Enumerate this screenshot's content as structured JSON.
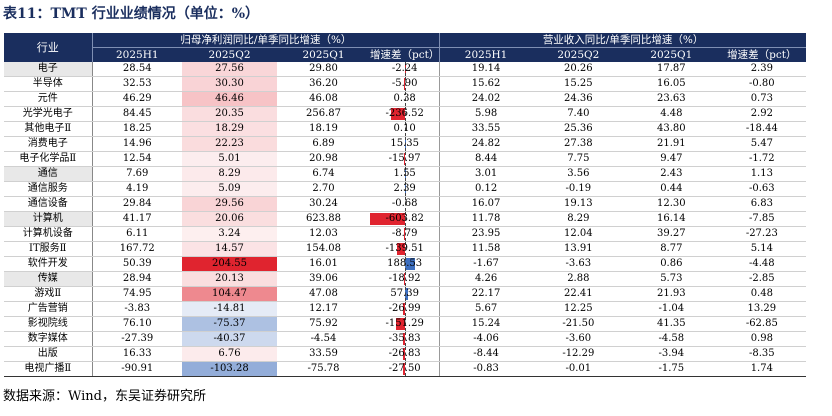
{
  "title": "表11：TMT 行业业绩情况（单位：%）",
  "source": "数据来源：Wind，东吴证券研究所",
  "headers": {
    "industry": "行业",
    "group_profit": "归母净利润同比/单季同比增速（%）",
    "group_revenue": "营业收入同比/单季同比增速（%）",
    "cols": [
      "2025H1",
      "2025Q2",
      "2025Q1",
      "增速差（pct）",
      "2025H1",
      "2025Q2",
      "2025Q1",
      "增速差（pct）"
    ]
  },
  "colors": {
    "header_bg": "#1a2e5e",
    "positive": "#e0242f",
    "negative": "#3566b8",
    "main_row_bg": "#e8e8e8"
  },
  "rows": [
    {
      "name": "电子",
      "level": "main",
      "p_h1": "28.54",
      "p_q2": "27.56",
      "p_q1": "29.80",
      "p_diff": "-2.24",
      "r_h1": "19.14",
      "r_q2": "20.26",
      "r_q1": "17.87",
      "r_diff": "2.39"
    },
    {
      "name": "半导体",
      "level": "sub",
      "p_h1": "32.53",
      "p_q2": "30.30",
      "p_q1": "36.20",
      "p_diff": "-5.90",
      "r_h1": "15.62",
      "r_q2": "15.25",
      "r_q1": "16.05",
      "r_diff": "-0.80"
    },
    {
      "name": "元件",
      "level": "sub",
      "p_h1": "46.29",
      "p_q2": "46.46",
      "p_q1": "46.08",
      "p_diff": "0.38",
      "r_h1": "24.02",
      "r_q2": "24.36",
      "r_q1": "23.63",
      "r_diff": "0.73"
    },
    {
      "name": "光学光电子",
      "level": "sub",
      "p_h1": "84.45",
      "p_q2": "20.35",
      "p_q1": "256.87",
      "p_diff": "-236.52",
      "r_h1": "5.98",
      "r_q2": "7.40",
      "r_q1": "4.48",
      "r_diff": "2.92"
    },
    {
      "name": "其他电子Ⅱ",
      "level": "sub",
      "p_h1": "18.25",
      "p_q2": "18.29",
      "p_q1": "18.19",
      "p_diff": "0.10",
      "r_h1": "33.55",
      "r_q2": "25.36",
      "r_q1": "43.80",
      "r_diff": "-18.44"
    },
    {
      "name": "消费电子",
      "level": "sub",
      "p_h1": "14.96",
      "p_q2": "22.23",
      "p_q1": "6.89",
      "p_diff": "15.35",
      "r_h1": "24.82",
      "r_q2": "27.38",
      "r_q1": "21.91",
      "r_diff": "5.47"
    },
    {
      "name": "电子化学品Ⅱ",
      "level": "sub",
      "p_h1": "12.54",
      "p_q2": "5.01",
      "p_q1": "20.98",
      "p_diff": "-15.97",
      "r_h1": "8.44",
      "r_q2": "7.75",
      "r_q1": "9.47",
      "r_diff": "-1.72"
    },
    {
      "name": "通信",
      "level": "main",
      "p_h1": "7.69",
      "p_q2": "8.29",
      "p_q1": "6.74",
      "p_diff": "1.55",
      "r_h1": "3.01",
      "r_q2": "3.56",
      "r_q1": "2.43",
      "r_diff": "1.13"
    },
    {
      "name": "通信服务",
      "level": "sub",
      "p_h1": "4.19",
      "p_q2": "5.09",
      "p_q1": "2.70",
      "p_diff": "2.39",
      "r_h1": "0.12",
      "r_q2": "-0.19",
      "r_q1": "0.44",
      "r_diff": "-0.63"
    },
    {
      "name": "通信设备",
      "level": "sub",
      "p_h1": "29.84",
      "p_q2": "29.56",
      "p_q1": "30.24",
      "p_diff": "-0.68",
      "r_h1": "16.07",
      "r_q2": "19.13",
      "r_q1": "12.30",
      "r_diff": "6.83"
    },
    {
      "name": "计算机",
      "level": "main",
      "p_h1": "41.17",
      "p_q2": "20.06",
      "p_q1": "623.88",
      "p_diff": "-603.82",
      "r_h1": "11.78",
      "r_q2": "8.29",
      "r_q1": "16.14",
      "r_diff": "-7.85"
    },
    {
      "name": "计算机设备",
      "level": "sub",
      "p_h1": "6.11",
      "p_q2": "3.24",
      "p_q1": "12.03",
      "p_diff": "-8.79",
      "r_h1": "23.95",
      "r_q2": "12.04",
      "r_q1": "39.27",
      "r_diff": "-27.23"
    },
    {
      "name": "IT服务Ⅱ",
      "level": "sub",
      "p_h1": "167.72",
      "p_q2": "14.57",
      "p_q1": "154.08",
      "p_diff": "-139.51",
      "r_h1": "11.58",
      "r_q2": "13.91",
      "r_q1": "8.77",
      "r_diff": "5.14"
    },
    {
      "name": "软件开发",
      "level": "sub",
      "p_h1": "50.39",
      "p_q2": "204.55",
      "p_q1": "16.01",
      "p_diff": "188.53",
      "r_h1": "-1.67",
      "r_q2": "-3.63",
      "r_q1": "0.86",
      "r_diff": "-4.48"
    },
    {
      "name": "传媒",
      "level": "main",
      "p_h1": "28.94",
      "p_q2": "20.13",
      "p_q1": "39.06",
      "p_diff": "-18.92",
      "r_h1": "4.26",
      "r_q2": "2.88",
      "r_q1": "5.73",
      "r_diff": "-2.85"
    },
    {
      "name": "游戏Ⅱ",
      "level": "sub",
      "p_h1": "74.95",
      "p_q2": "104.47",
      "p_q1": "47.08",
      "p_diff": "57.39",
      "r_h1": "22.17",
      "r_q2": "22.41",
      "r_q1": "21.93",
      "r_diff": "0.48"
    },
    {
      "name": "广告营销",
      "level": "sub",
      "p_h1": "-3.83",
      "p_q2": "-14.81",
      "p_q1": "12.17",
      "p_diff": "-26.99",
      "r_h1": "5.67",
      "r_q2": "12.25",
      "r_q1": "-1.04",
      "r_diff": "13.29"
    },
    {
      "name": "影视院线",
      "level": "sub",
      "p_h1": "76.10",
      "p_q2": "-75.37",
      "p_q1": "75.92",
      "p_diff": "-151.29",
      "r_h1": "15.24",
      "r_q2": "-21.50",
      "r_q1": "41.35",
      "r_diff": "-62.85"
    },
    {
      "name": "数字媒体",
      "level": "sub",
      "p_h1": "-27.39",
      "p_q2": "-40.37",
      "p_q1": "-4.54",
      "p_diff": "-35.83",
      "r_h1": "-4.06",
      "r_q2": "-3.60",
      "r_q1": "-4.58",
      "r_diff": "0.98"
    },
    {
      "name": "出版",
      "level": "sub",
      "p_h1": "16.33",
      "p_q2": "6.76",
      "p_q1": "33.59",
      "p_diff": "-26.83",
      "r_h1": "-8.44",
      "r_q2": "-12.29",
      "r_q1": "-3.94",
      "r_diff": "-8.35"
    },
    {
      "name": "电视广播Ⅱ",
      "level": "sub",
      "p_h1": "-90.91",
      "p_q2": "-103.28",
      "p_q1": "-75.78",
      "p_diff": "-27.50",
      "r_h1": "-0.83",
      "r_q2": "-0.01",
      "r_q1": "-1.75",
      "r_diff": "1.74"
    }
  ]
}
